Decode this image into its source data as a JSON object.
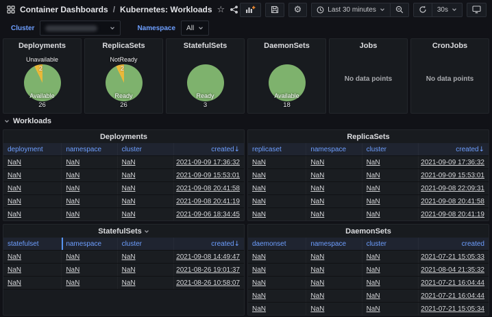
{
  "breadcrumb": {
    "folder": "Container Dashboards",
    "separator": "/",
    "dashboard": "Kubernetes: Workloads"
  },
  "icons": {
    "star": "☆",
    "gear": "⚙"
  },
  "toolbar": {
    "time_range": "Last 30 minutes",
    "refresh_interval": "30s"
  },
  "variables": {
    "cluster": {
      "label": "Cluster",
      "value_redacted": true
    },
    "namespace": {
      "label": "Namespace",
      "value": "All"
    }
  },
  "colors": {
    "accent_blue": "#6e9fff",
    "green": "#7EB26D",
    "yellow": "#EAB839",
    "panel_bg": "#181b1f",
    "page_bg": "#111217"
  },
  "row_section": {
    "label": "Workloads",
    "collapsed": false
  },
  "stat_panels": [
    {
      "title": "Deployments",
      "type": "pie",
      "slices": [
        {
          "label": "Available",
          "value": 26,
          "color": "#7EB26D"
        },
        {
          "label": "Unavailable",
          "value": 2,
          "color": "#EAB839"
        }
      ]
    },
    {
      "title": "ReplicaSets",
      "type": "pie",
      "slices": [
        {
          "label": "Ready",
          "value": 26,
          "color": "#7EB26D"
        },
        {
          "label": "NotReady",
          "value": 2,
          "color": "#EAB839"
        }
      ]
    },
    {
      "title": "StatefulSets",
      "type": "pie",
      "slices": [
        {
          "label": "Ready",
          "value": 3,
          "color": "#7EB26D"
        }
      ]
    },
    {
      "title": "DaemonSets",
      "type": "pie",
      "slices": [
        {
          "label": "Available",
          "value": 18,
          "color": "#7EB26D"
        }
      ]
    },
    {
      "title": "Jobs",
      "type": "empty",
      "message": "No data points"
    },
    {
      "title": "CronJobs",
      "type": "empty",
      "message": "No data points"
    }
  ],
  "tables": [
    {
      "title": "Deployments",
      "title_caret": false,
      "sort_arrow": "↓",
      "columns": [
        "deployment",
        "namespace",
        "cluster",
        "created"
      ],
      "rows": [
        [
          "NaN",
          "NaN",
          "NaN",
          "2021-09-09 17:36:32"
        ],
        [
          "NaN",
          "NaN",
          "NaN",
          "2021-09-09 15:53:01"
        ],
        [
          "NaN",
          "NaN",
          "NaN",
          "2021-09-08 20:41:58"
        ],
        [
          "NaN",
          "NaN",
          "NaN",
          "2021-09-08 20:41:19"
        ],
        [
          "NaN",
          "NaN",
          "NaN",
          "2021-09-06 18:34:45"
        ]
      ]
    },
    {
      "title": "ReplicaSets",
      "title_caret": false,
      "sort_arrow": "↓",
      "columns": [
        "replicaset",
        "namespace",
        "cluster",
        "created"
      ],
      "rows": [
        [
          "NaN",
          "NaN",
          "NaN",
          "2021-09-09 17:36:32"
        ],
        [
          "NaN",
          "NaN",
          "NaN",
          "2021-09-09 15:53:01"
        ],
        [
          "NaN",
          "NaN",
          "NaN",
          "2021-09-08 22:09:31"
        ],
        [
          "NaN",
          "NaN",
          "NaN",
          "2021-09-08 20:41:58"
        ],
        [
          "NaN",
          "NaN",
          "NaN",
          "2021-09-08 20:41:19"
        ]
      ]
    },
    {
      "title": "StatefulSets",
      "title_caret": true,
      "sort_arrow": "↓",
      "resize_indicator_col": 1,
      "columns": [
        "statefulset",
        "namespace",
        "cluster",
        "created"
      ],
      "rows": [
        [
          "NaN",
          "NaN",
          "NaN",
          "2021-09-08 14:49:47"
        ],
        [
          "NaN",
          "NaN",
          "NaN",
          "2021-08-26 19:01:37"
        ],
        [
          "NaN",
          "NaN",
          "NaN",
          "2021-08-26 10:58:07"
        ]
      ]
    },
    {
      "title": "DaemonSets",
      "title_caret": false,
      "sort_arrow": null,
      "columns": [
        "daemonset",
        "namespace",
        "cluster",
        "created"
      ],
      "rows": [
        [
          "NaN",
          "NaN",
          "NaN",
          "2021-07-21 15:05:33"
        ],
        [
          "NaN",
          "NaN",
          "NaN",
          "2021-08-04 21:35:32"
        ],
        [
          "NaN",
          "NaN",
          "NaN",
          "2021-07-21 16:04:44"
        ],
        [
          "NaN",
          "NaN",
          "NaN",
          "2021-07-21 16:04:44"
        ],
        [
          "NaN",
          "NaN",
          "NaN",
          "2021-07-21 15:05:34"
        ]
      ]
    }
  ],
  "chart_data": [
    {
      "type": "pie",
      "title": "Deployments",
      "labels": [
        "Available",
        "Unavailable"
      ],
      "values": [
        26,
        2
      ]
    },
    {
      "type": "pie",
      "title": "ReplicaSets",
      "labels": [
        "Ready",
        "NotReady"
      ],
      "values": [
        26,
        2
      ]
    },
    {
      "type": "pie",
      "title": "StatefulSets",
      "labels": [
        "Ready"
      ],
      "values": [
        3
      ]
    },
    {
      "type": "pie",
      "title": "DaemonSets",
      "labels": [
        "Available"
      ],
      "values": [
        18
      ]
    }
  ]
}
